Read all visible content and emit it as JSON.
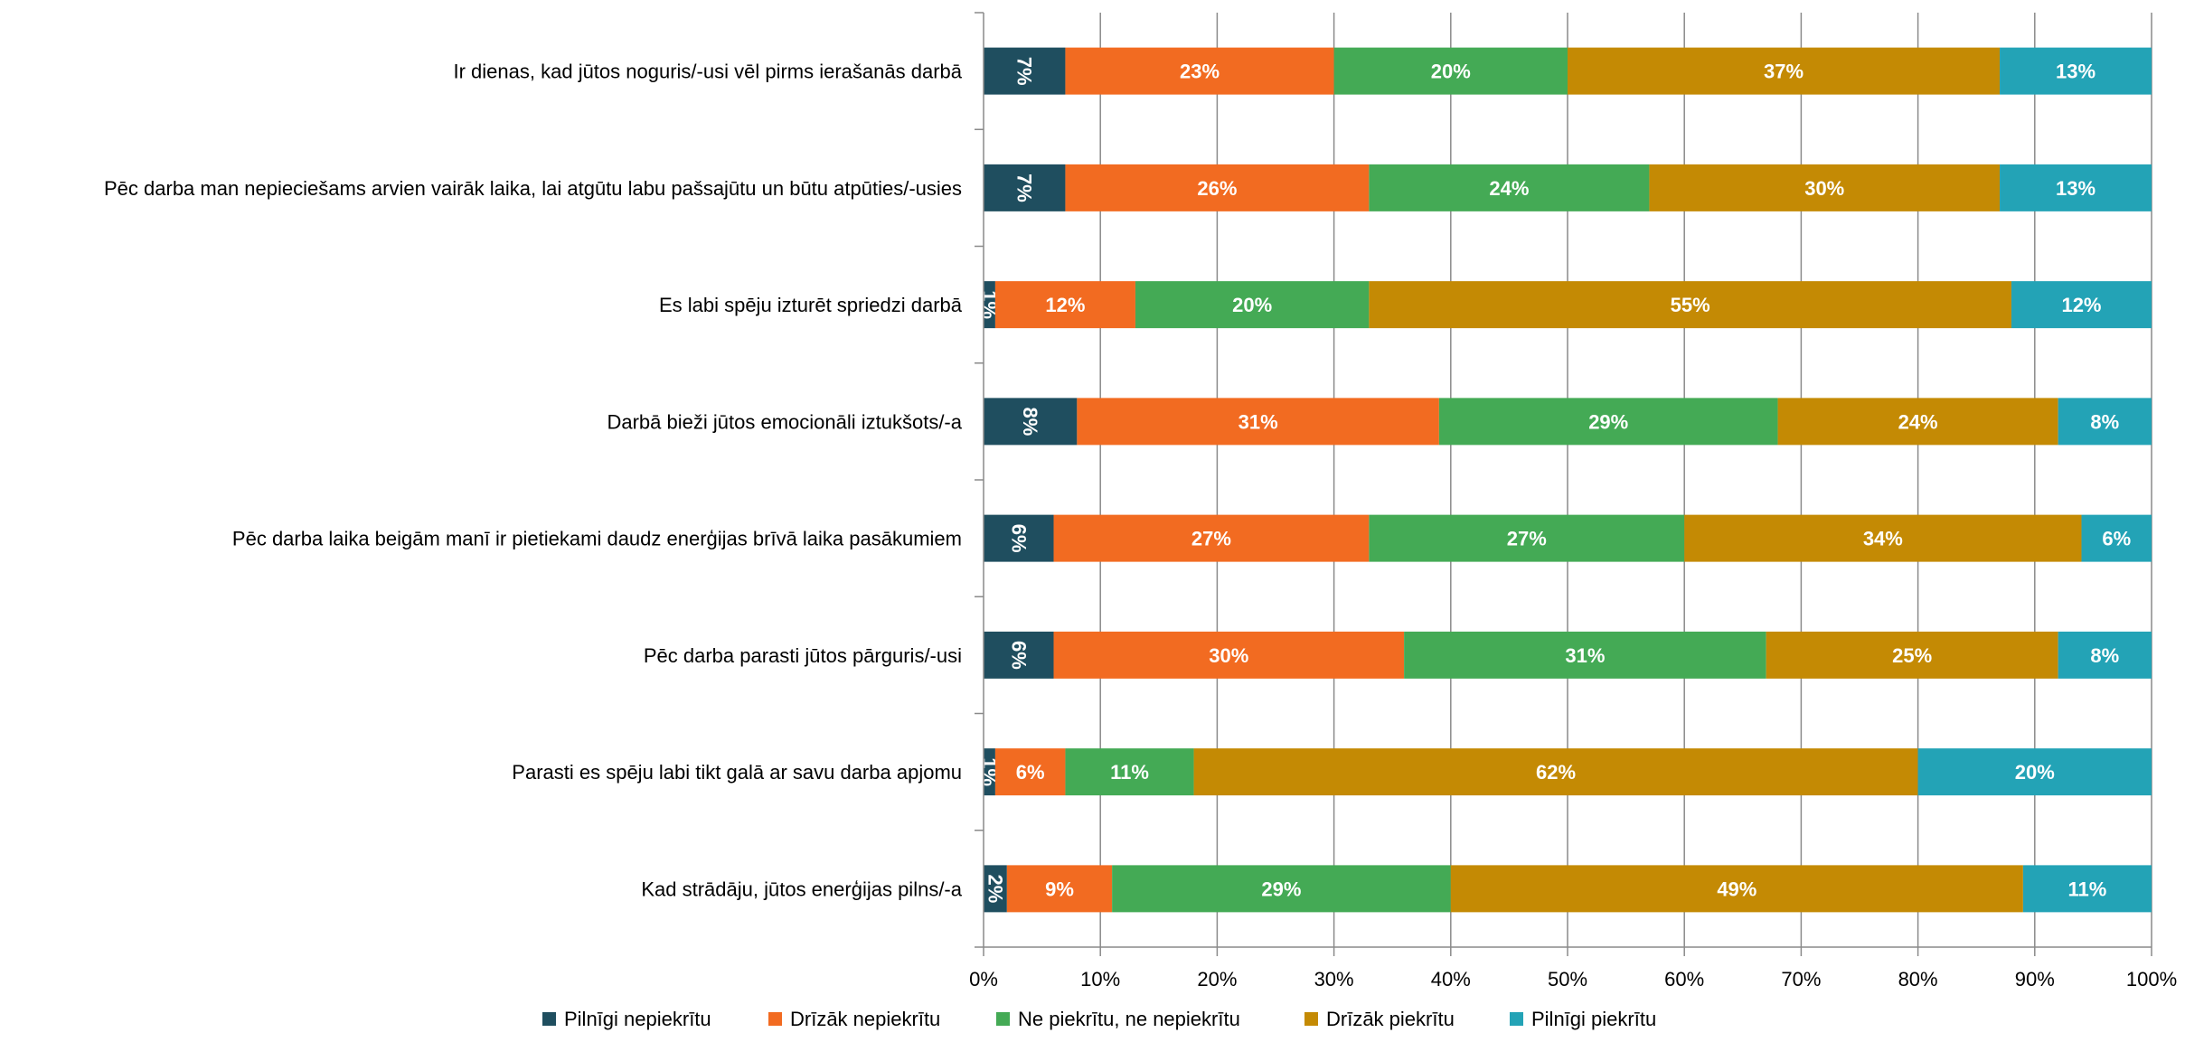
{
  "chart_data": {
    "type": "bar",
    "orientation": "horizontal",
    "stacked": true,
    "categories": [
      "Ir dienas, kad jūtos noguris/-usi vēl pirms ierašanās darbā",
      "Pēc darba man nepieciešams arvien vairāk laika, lai atgūtu labu pašsajūtu un būtu atpūties/-usies",
      "Es labi spēju izturēt spriedzi darbā",
      "Darbā bieži jūtos emocionāli iztukšots/-a",
      "Pēc darba laika beigām manī ir pietiekami daudz enerģijas brīvā laika pasākumiem",
      "Pēc darba parasti jūtos pārguris/-usi",
      "Parasti es spēju labi tikt galā ar savu darba apjomu",
      "Kad strādāju, jūtos enerģijas pilns/-a"
    ],
    "series": [
      {
        "name": "Pilnīgi nepiekrītu",
        "color": "#1f4e5f",
        "values": [
          7,
          7,
          1,
          8,
          6,
          6,
          1,
          2
        ],
        "labels": [
          "7%",
          "7%",
          "1%",
          "8%",
          "6%",
          "6%",
          "1%",
          "2%"
        ],
        "label_rotated": true
      },
      {
        "name": "Drīzāk nepiekrītu",
        "color": "#f26b21",
        "values": [
          23,
          26,
          12,
          31,
          27,
          30,
          6,
          9
        ],
        "labels": [
          "23%",
          "26%",
          "12%",
          "31%",
          "27%",
          "30%",
          "6%",
          "9%"
        ]
      },
      {
        "name": "Ne piekrītu, ne nepiekrītu",
        "color": "#44aa55",
        "values": [
          20,
          24,
          20,
          29,
          27,
          31,
          11,
          29
        ],
        "labels": [
          "20%",
          "24%",
          "20%",
          "29%",
          "27%",
          "31%",
          "11%",
          "29%"
        ]
      },
      {
        "name": "Drīzāk piekrītu",
        "color": "#c48a04",
        "values": [
          37,
          30,
          55,
          24,
          34,
          25,
          62,
          49
        ],
        "labels": [
          "37%",
          "30%",
          "55%",
          "24%",
          "34%",
          "25%",
          "62%",
          "49%"
        ]
      },
      {
        "name": "Pilnīgi piekrītu",
        "color": "#23a3b6",
        "values": [
          13,
          13,
          12,
          8,
          6,
          8,
          20,
          11
        ],
        "labels": [
          "13%",
          "13%",
          "12%",
          "8%",
          "6%",
          "8%",
          "20%",
          "11%"
        ]
      }
    ],
    "xlim": [
      0,
      100
    ],
    "x_ticks": [
      "0%",
      "10%",
      "20%",
      "30%",
      "40%",
      "50%",
      "60%",
      "70%",
      "80%",
      "90%",
      "100%"
    ],
    "grid": true,
    "legend_position": "bottom",
    "title": "",
    "xlabel": "",
    "ylabel": ""
  }
}
